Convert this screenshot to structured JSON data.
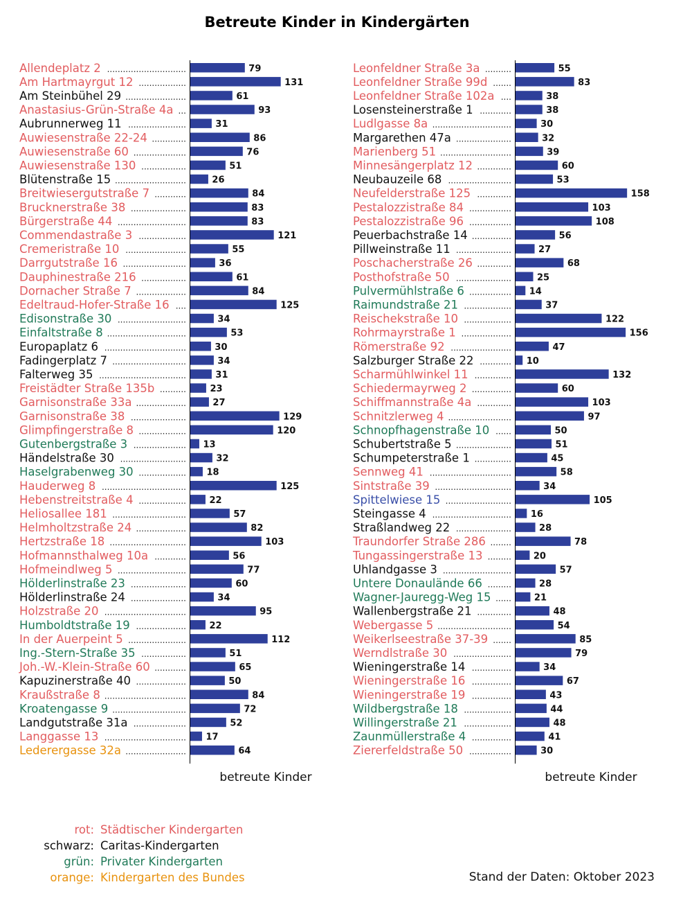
{
  "colors": {
    "bar": "#2e3f9a",
    "staedtisch": "#e25c5f",
    "caritas": "#111111",
    "privat": "#207a58",
    "bund": "#e8920e",
    "sonstig": "#3a4fa8"
  },
  "chart_data": {
    "type": "bar",
    "orientation": "horizontal",
    "title": "Betreute Kinder in Kindergärten",
    "xlabel": "betreute Kinder",
    "note": "Stand der Daten: Oktober 2023",
    "legend": [
      {
        "key": "rot:",
        "label": "Städtischer Kindergarten",
        "color": "staedtisch"
      },
      {
        "key": "schwarz:",
        "label": "Caritas-Kindergarten",
        "color": "caritas"
      },
      {
        "key": "grün:",
        "label": "Privater Kindergarten",
        "color": "privat"
      },
      {
        "key": "orange:",
        "label": "Kindergarten des Bundes",
        "color": "bund"
      }
    ],
    "panels": [
      {
        "items": [
          {
            "label": "Allendeplatz 2",
            "value": 79,
            "group": "staedtisch"
          },
          {
            "label": "Am Hartmayrgut 12",
            "value": 131,
            "group": "staedtisch"
          },
          {
            "label": "Am Steinbühel 29",
            "value": 61,
            "group": "caritas"
          },
          {
            "label": "Anastasius-Grün-Straße 4a",
            "value": 93,
            "group": "staedtisch"
          },
          {
            "label": "Aubrunnerweg 11",
            "value": 31,
            "group": "caritas"
          },
          {
            "label": "Auwiesenstraße 22-24",
            "value": 86,
            "group": "staedtisch"
          },
          {
            "label": "Auwiesenstraße 60",
            "value": 76,
            "group": "staedtisch"
          },
          {
            "label": "Auwiesenstraße 130",
            "value": 51,
            "group": "staedtisch"
          },
          {
            "label": "Blütenstraße 15",
            "value": 26,
            "group": "caritas"
          },
          {
            "label": "Breitwiesergutstraße 7",
            "value": 84,
            "group": "staedtisch"
          },
          {
            "label": "Brucknerstraße 38",
            "value": 83,
            "group": "staedtisch"
          },
          {
            "label": "Bürgerstraße 44",
            "value": 83,
            "group": "staedtisch"
          },
          {
            "label": "Commendastraße 3",
            "value": 121,
            "group": "staedtisch"
          },
          {
            "label": "Cremeristraße 10",
            "value": 55,
            "group": "staedtisch"
          },
          {
            "label": "Darrgutstraße 16",
            "value": 36,
            "group": "staedtisch"
          },
          {
            "label": "Dauphinestraße 216",
            "value": 61,
            "group": "staedtisch"
          },
          {
            "label": "Dornacher Straße 7",
            "value": 84,
            "group": "staedtisch"
          },
          {
            "label": "Edeltraud-Hofer-Straße 16",
            "value": 125,
            "group": "staedtisch"
          },
          {
            "label": "Edisonstraße 30",
            "value": 34,
            "group": "privat"
          },
          {
            "label": "Einfaltstraße 8",
            "value": 53,
            "group": "privat"
          },
          {
            "label": "Europaplatz 6",
            "value": 30,
            "group": "caritas"
          },
          {
            "label": "Fadingerplatz 7",
            "value": 34,
            "group": "caritas"
          },
          {
            "label": "Falterweg 35",
            "value": 31,
            "group": "caritas"
          },
          {
            "label": "Freistädter Straße 135b",
            "value": 23,
            "group": "staedtisch"
          },
          {
            "label": "Garnisonstraße 33a",
            "value": 27,
            "group": "staedtisch"
          },
          {
            "label": "Garnisonstraße 38",
            "value": 129,
            "group": "staedtisch"
          },
          {
            "label": "Glimpfingerstraße 8",
            "value": 120,
            "group": "staedtisch"
          },
          {
            "label": "Gutenbergstraße 3",
            "value": 13,
            "group": "privat"
          },
          {
            "label": "Händelstraße 30",
            "value": 32,
            "group": "caritas"
          },
          {
            "label": "Haselgrabenweg 30",
            "value": 18,
            "group": "privat"
          },
          {
            "label": "Hauderweg 8",
            "value": 125,
            "group": "staedtisch"
          },
          {
            "label": "Hebenstreitstraße 4",
            "value": 22,
            "group": "staedtisch"
          },
          {
            "label": "Heliosallee 181",
            "value": 57,
            "group": "staedtisch"
          },
          {
            "label": "Helmholtzstraße 24",
            "value": 82,
            "group": "staedtisch"
          },
          {
            "label": "Hertzstraße 18",
            "value": 103,
            "group": "staedtisch"
          },
          {
            "label": "Hofmannsthalweg 10a",
            "value": 56,
            "group": "staedtisch"
          },
          {
            "label": "Hofmeindlweg 5",
            "value": 77,
            "group": "staedtisch"
          },
          {
            "label": "Hölderlinstraße 23",
            "value": 60,
            "group": "privat"
          },
          {
            "label": "Hölderlinstraße 24",
            "value": 34,
            "group": "caritas"
          },
          {
            "label": "Holzstraße 20",
            "value": 95,
            "group": "staedtisch"
          },
          {
            "label": "Humboldtstraße 19",
            "value": 22,
            "group": "privat"
          },
          {
            "label": "In der Auerpeint 5",
            "value": 112,
            "group": "staedtisch"
          },
          {
            "label": "Ing.-Stern-Straße 35",
            "value": 51,
            "group": "privat"
          },
          {
            "label": "Joh.-W.-Klein-Straße 60",
            "value": 65,
            "group": "staedtisch"
          },
          {
            "label": "Kapuzinerstraße 40",
            "value": 50,
            "group": "caritas"
          },
          {
            "label": "Kraußstraße 8",
            "value": 84,
            "group": "staedtisch"
          },
          {
            "label": "Kroatengasse 9",
            "value": 72,
            "group": "privat"
          },
          {
            "label": "Landgutstraße 31a",
            "value": 52,
            "group": "caritas"
          },
          {
            "label": "Langgasse 13",
            "value": 17,
            "group": "staedtisch"
          },
          {
            "label": "Lederergasse 32a",
            "value": 64,
            "group": "bund"
          }
        ]
      },
      {
        "items": [
          {
            "label": "Leonfeldner Straße 3a",
            "value": 55,
            "group": "staedtisch"
          },
          {
            "label": "Leonfeldner Straße 99d",
            "value": 83,
            "group": "staedtisch"
          },
          {
            "label": "Leonfeldner Straße 102a",
            "value": 38,
            "group": "staedtisch"
          },
          {
            "label": "Losensteinerstraße 1",
            "value": 38,
            "group": "caritas"
          },
          {
            "label": "Ludlgasse 8a",
            "value": 30,
            "group": "staedtisch"
          },
          {
            "label": "Margarethen 47a",
            "value": 32,
            "group": "caritas"
          },
          {
            "label": "Marienberg 51",
            "value": 39,
            "group": "staedtisch"
          },
          {
            "label": "Minnesängerplatz 12",
            "value": 60,
            "group": "staedtisch"
          },
          {
            "label": "Neubauzeile 68",
            "value": 53,
            "group": "caritas"
          },
          {
            "label": "Neufelderstraße 125",
            "value": 158,
            "group": "staedtisch"
          },
          {
            "label": "Pestalozzistraße 84",
            "value": 103,
            "group": "staedtisch"
          },
          {
            "label": "Pestalozzistraße 96",
            "value": 108,
            "group": "staedtisch"
          },
          {
            "label": "Peuerbachstraße 14",
            "value": 56,
            "group": "caritas"
          },
          {
            "label": "Pillweinstraße 11",
            "value": 27,
            "group": "caritas"
          },
          {
            "label": "Poschacherstraße 26",
            "value": 68,
            "group": "staedtisch"
          },
          {
            "label": "Posthofstraße 50",
            "value": 25,
            "group": "staedtisch"
          },
          {
            "label": "Pulvermühlstraße 6",
            "value": 14,
            "group": "privat"
          },
          {
            "label": "Raimundstraße 21",
            "value": 37,
            "group": "privat"
          },
          {
            "label": "Reischekstraße 10",
            "value": 122,
            "group": "staedtisch"
          },
          {
            "label": "Rohrmayrstraße 1",
            "value": 156,
            "group": "staedtisch"
          },
          {
            "label": "Römerstraße 92",
            "value": 47,
            "group": "staedtisch"
          },
          {
            "label": "Salzburger Straße 22",
            "value": 10,
            "group": "caritas"
          },
          {
            "label": "Scharmühlwinkel 11",
            "value": 132,
            "group": "staedtisch"
          },
          {
            "label": "Schiedermayrweg 2",
            "value": 60,
            "group": "staedtisch"
          },
          {
            "label": "Schiffmannstraße 4a",
            "value": 103,
            "group": "staedtisch"
          },
          {
            "label": "Schnitzlerweg 4",
            "value": 97,
            "group": "staedtisch"
          },
          {
            "label": "Schnopfhagenstraße 10",
            "value": 50,
            "group": "privat"
          },
          {
            "label": "Schubertstraße 5",
            "value": 51,
            "group": "caritas"
          },
          {
            "label": "Schumpeterstraße 1",
            "value": 45,
            "group": "caritas"
          },
          {
            "label": "Sennweg 41",
            "value": 58,
            "group": "staedtisch"
          },
          {
            "label": "Sintstraße 39",
            "value": 34,
            "group": "staedtisch"
          },
          {
            "label": "Spittelwiese 15",
            "value": 105,
            "group": "sonstig"
          },
          {
            "label": "Steingasse 4",
            "value": 16,
            "group": "caritas"
          },
          {
            "label": "Straßlandweg 22",
            "value": 28,
            "group": "caritas"
          },
          {
            "label": "Traundorfer Straße 286",
            "value": 78,
            "group": "staedtisch"
          },
          {
            "label": "Tungassingerstraße 13",
            "value": 20,
            "group": "staedtisch"
          },
          {
            "label": "Uhlandgasse 3",
            "value": 57,
            "group": "caritas"
          },
          {
            "label": "Untere Donaulände 66",
            "value": 28,
            "group": "privat"
          },
          {
            "label": "Wagner-Jauregg-Weg 15",
            "value": 21,
            "group": "privat"
          },
          {
            "label": "Wallenbergstraße 21",
            "value": 48,
            "group": "caritas"
          },
          {
            "label": "Webergasse 5",
            "value": 54,
            "group": "staedtisch"
          },
          {
            "label": "Weikerlseestraße 37-39",
            "value": 85,
            "group": "staedtisch"
          },
          {
            "label": "Werndlstraße 30",
            "value": 79,
            "group": "staedtisch"
          },
          {
            "label": "Wieningerstraße 14",
            "value": 34,
            "group": "caritas"
          },
          {
            "label": "Wieningerstraße 16",
            "value": 67,
            "group": "staedtisch"
          },
          {
            "label": "Wieningerstraße 19",
            "value": 43,
            "group": "staedtisch"
          },
          {
            "label": "Wildbergstraße 18",
            "value": 44,
            "group": "privat"
          },
          {
            "label": "Willingerstraße 21",
            "value": 48,
            "group": "privat"
          },
          {
            "label": "Zaunmüllerstraße 4",
            "value": 41,
            "group": "privat"
          },
          {
            "label": "Ziererfeldstraße 50",
            "value": 30,
            "group": "staedtisch"
          }
        ]
      }
    ]
  }
}
